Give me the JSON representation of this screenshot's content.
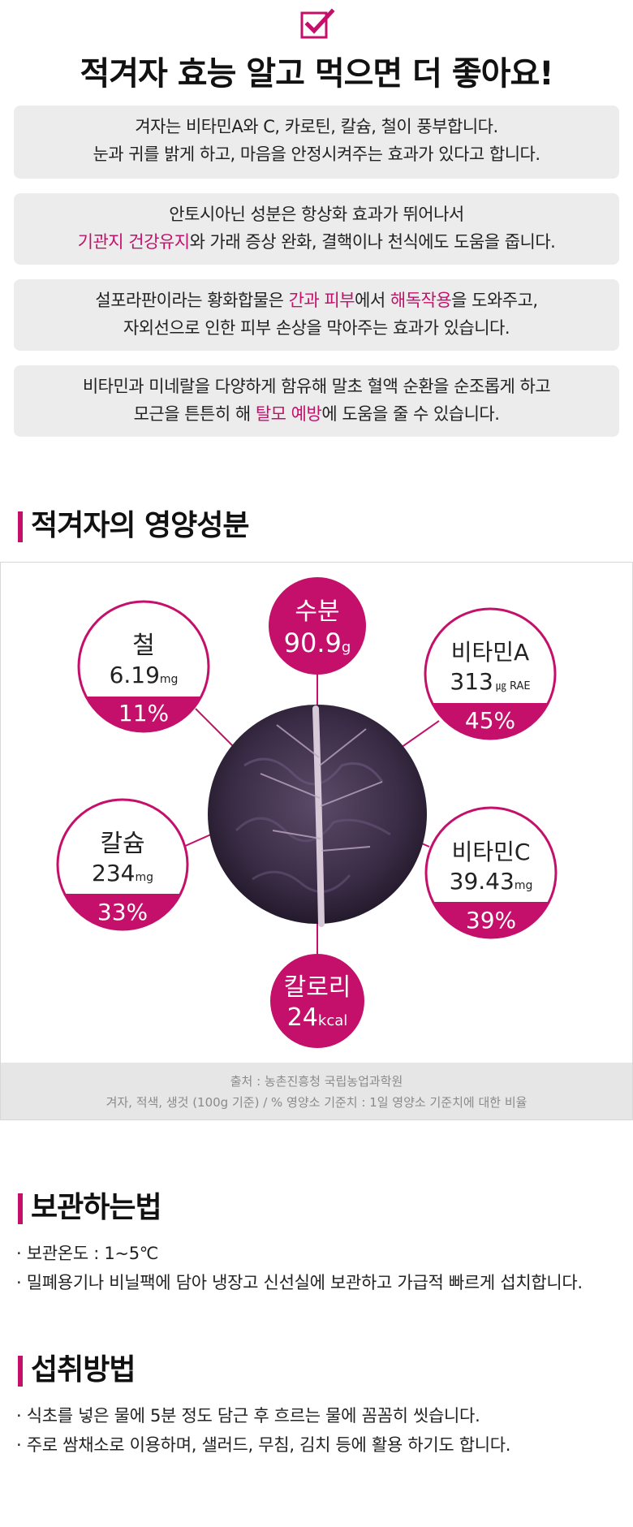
{
  "header": {
    "icon": "checkbox-check-icon",
    "title": "적겨자 효능 알고 먹으면 더 좋아요!"
  },
  "benefits": [
    {
      "line1": "겨자는 비타민A와 C, 카로틴, 칼슘, 철이 풍부합니다.",
      "line2": "눈과 귀를 밝게 하고, 마음을 안정시켜주는 효과가 있다고 합니다."
    },
    {
      "line1": "안토시아닌 성분은 항상화 효과가 뛰어나서",
      "line2_hl": "기관지 건강유지",
      "line2_rest": "와 가래 증상 완화, 결핵이나 천식에도 도움을 줍니다."
    },
    {
      "line1_a": "설포라판이라는 황화합물은 ",
      "line1_hl1": "간과 피부",
      "line1_b": "에서 ",
      "line1_hl2": "해독작용",
      "line1_c": "을 도와주고,",
      "line2": "자외선으로 인한 피부 손상을 막아주는 효과가 있습니다."
    },
    {
      "line1": "비타민과 미네랄을 다양하게 함유해 말초 혈액 순환을 순조롭게 하고",
      "line2_a": "모근을 튼튼히 해 ",
      "line2_hl": "탈모 예방",
      "line2_b": "에 도움을 줄 수 있습니다."
    }
  ],
  "nutrition": {
    "title": "적겨자의 영양성분",
    "water": {
      "name": "수분",
      "value": "90.9",
      "unit": "g"
    },
    "calorie": {
      "name": "칼로리",
      "value": "24",
      "unit": "kcal"
    },
    "iron": {
      "name": "철",
      "value": "6.19",
      "unit": "mg",
      "percent": "11%"
    },
    "vitamin_a": {
      "name": "비타민A",
      "value": "313",
      "unit": "㎍ RAE",
      "percent": "45%"
    },
    "calcium": {
      "name": "칼슘",
      "value": "234",
      "unit": "mg",
      "percent": "33%"
    },
    "vitamin_c": {
      "name": "비타민C",
      "value": "39.43",
      "unit": "mg",
      "percent": "39%"
    },
    "source_line1": "출처 : 농촌진흥청 국립농업과학원",
    "source_line2": "겨자, 적색, 생것 (100g 기준) / % 영양소 기준치 : 1일 영양소 기준치에 대한 비율"
  },
  "storage": {
    "title": "보관하는법",
    "items": [
      "보관온도 :  1~5℃",
      "밀폐용기나 비닐팩에 담아 냉장고 신선실에 보관하고 가급적 빠르게 섭치합니다."
    ]
  },
  "intake": {
    "title": "섭취방법",
    "items": [
      "식초를 넣은 물에 5분 정도 담근 후 흐르는 물에 꼼꼼히 씻습니다.",
      "주로 쌈채소로 이용하며, 샐러드, 무침, 김치 등에 활용 하기도 합니다."
    ]
  },
  "colors": {
    "accent": "#c4106b",
    "box_bg": "#ececec"
  }
}
